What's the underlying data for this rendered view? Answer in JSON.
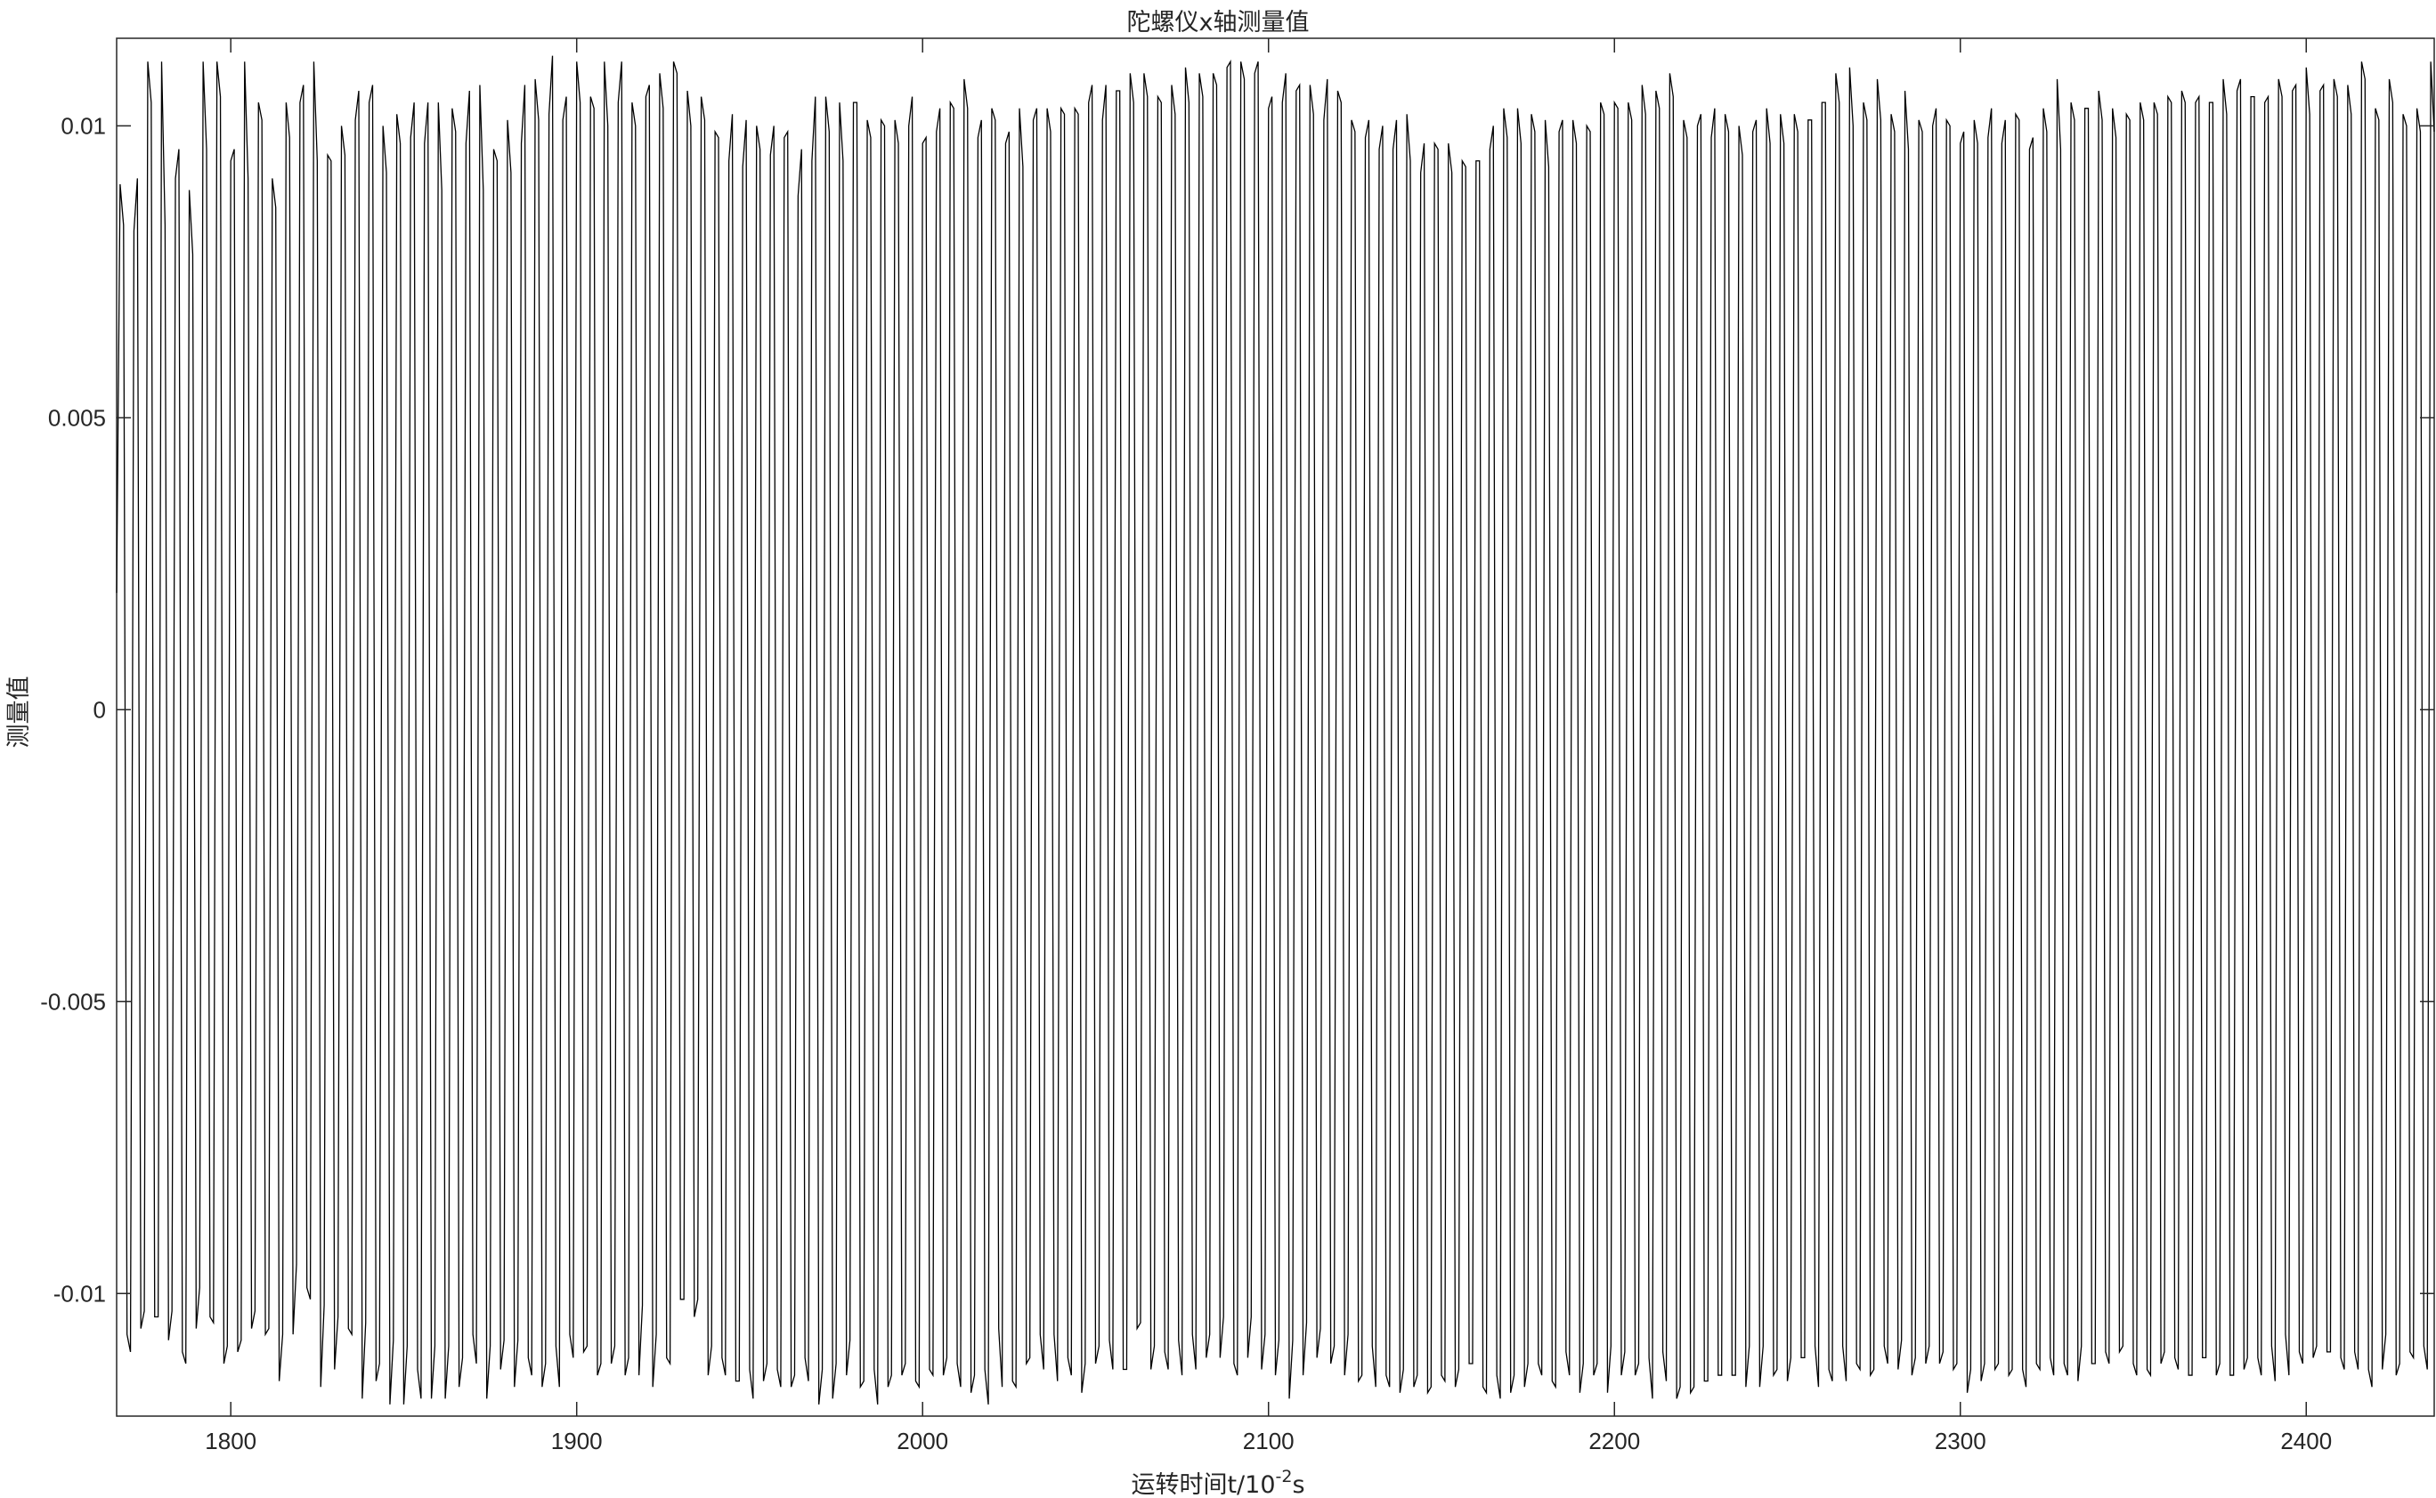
{
  "chart_data": {
    "type": "line",
    "title": "陀螺仪x轴测量值",
    "xlabel": {
      "prefix": "运转时间t/10",
      "superscript": "-2",
      "suffix": "s"
    },
    "ylabel": "测量值",
    "xlim": [
      1767,
      2437
    ],
    "ylim": [
      -0.0121,
      0.0115
    ],
    "grid": false,
    "x_ticks": [
      1800,
      1900,
      2000,
      2100,
      2200,
      2300,
      2400
    ],
    "x_tick_labels": [
      "1800",
      "1900",
      "2000",
      "2100",
      "2200",
      "2300",
      "2400"
    ],
    "y_ticks": [
      -0.01,
      -0.005,
      0,
      0.005,
      0.01
    ],
    "y_tick_labels": [
      "-0.01",
      "-0.005",
      "0",
      "0.005",
      "0.01"
    ],
    "line_color": "#000000",
    "series": [
      {
        "x_start": 1767,
        "x_step": 1,
        "values": [
          0.002,
          0.009,
          0.0083,
          -0.0107,
          -0.011,
          0.0082,
          0.0091,
          -0.0106,
          -0.0103,
          0.0111,
          0.0104,
          -0.0104,
          -0.0104,
          0.0111,
          0.0083,
          -0.0108,
          -0.0103,
          0.0091,
          0.0096,
          -0.011,
          -0.0112,
          0.0089,
          0.0078,
          -0.0106,
          -0.0099,
          0.0111,
          0.0096,
          -0.0104,
          -0.0105,
          0.0111,
          0.0105,
          -0.0112,
          -0.0109,
          0.0094,
          0.0096,
          -0.011,
          -0.0108,
          0.0111,
          0.0091,
          -0.0106,
          -0.0103,
          0.0104,
          0.0101,
          -0.0107,
          -0.0106,
          0.0091,
          0.0086,
          -0.0115,
          -0.0107,
          0.0104,
          0.0098,
          -0.0107,
          -0.0095,
          0.0104,
          0.0107,
          -0.0099,
          -0.0101,
          0.0111,
          0.0094,
          -0.0116,
          -0.0102,
          0.0095,
          0.0094,
          -0.0113,
          -0.0104,
          0.01,
          0.0095,
          -0.0106,
          -0.0107,
          0.0101,
          0.0106,
          -0.0118,
          -0.0105,
          0.0104,
          0.0107,
          -0.0115,
          -0.0112,
          0.01,
          0.0092,
          -0.0119,
          -0.0108,
          0.0102,
          0.0097,
          -0.0119,
          -0.0109,
          0.0098,
          0.0104,
          -0.0113,
          -0.0118,
          0.0097,
          0.0104,
          -0.0118,
          -0.0109,
          0.0104,
          0.0089,
          -0.0118,
          -0.0109,
          0.0103,
          0.0099,
          -0.0116,
          -0.0111,
          0.0097,
          0.0106,
          -0.0107,
          -0.0112,
          0.0107,
          0.0089,
          -0.0118,
          -0.0109,
          0.0096,
          0.0094,
          -0.0113,
          -0.0108,
          0.0101,
          0.0092,
          -0.0116,
          -0.0108,
          0.0097,
          0.0107,
          -0.0111,
          -0.0114,
          0.0108,
          0.0101,
          -0.0116,
          -0.0112,
          0.0102,
          0.0112,
          -0.0109,
          -0.0116,
          0.0101,
          0.0105,
          -0.0107,
          -0.0111,
          0.0111,
          0.0104,
          -0.011,
          -0.0109,
          0.0105,
          0.0103,
          -0.0114,
          -0.0112,
          0.0111,
          0.01,
          -0.0112,
          -0.0109,
          0.0104,
          0.0111,
          -0.0114,
          -0.0111,
          0.0104,
          0.01,
          -0.0114,
          -0.0102,
          0.0105,
          0.0107,
          -0.0116,
          -0.0107,
          0.0109,
          0.0103,
          -0.0111,
          -0.0112,
          0.0111,
          0.0109,
          -0.0101,
          -0.0101,
          0.0106,
          0.01,
          -0.0104,
          -0.0101,
          0.0105,
          0.0101,
          -0.0114,
          -0.0109,
          0.0099,
          0.0098,
          -0.0111,
          -0.0114,
          0.0094,
          0.0102,
          -0.0115,
          -0.0115,
          0.0093,
          0.0101,
          -0.0113,
          -0.0118,
          0.01,
          0.0096,
          -0.0115,
          -0.0112,
          0.0095,
          0.01,
          -0.0113,
          -0.0116,
          0.0098,
          0.0099,
          -0.0116,
          -0.0114,
          0.0088,
          0.0096,
          -0.0111,
          -0.0115,
          0.0094,
          0.0105,
          -0.0119,
          -0.0113,
          0.0105,
          0.0099,
          -0.0118,
          -0.0112,
          0.0104,
          0.0094,
          -0.0114,
          -0.0108,
          0.0104,
          0.0104,
          -0.0116,
          -0.0115,
          0.0101,
          0.0098,
          -0.0113,
          -0.0119,
          0.0101,
          0.01,
          -0.0116,
          -0.0114,
          0.0101,
          0.0097,
          -0.0114,
          -0.0112,
          0.01,
          0.0105,
          -0.0115,
          -0.0116,
          0.0097,
          0.0098,
          -0.0113,
          -0.0114,
          0.0099,
          0.0103,
          -0.0114,
          -0.0111,
          0.0104,
          0.0103,
          -0.0112,
          -0.0116,
          0.0108,
          0.0103,
          -0.0117,
          -0.0114,
          0.0098,
          0.0101,
          -0.0113,
          -0.0119,
          0.0103,
          0.0101,
          -0.0106,
          -0.0116,
          0.0097,
          0.0099,
          -0.0115,
          -0.0116,
          0.0103,
          0.0093,
          -0.0112,
          -0.0111,
          0.0101,
          0.0103,
          -0.0107,
          -0.0113,
          0.0103,
          0.0099,
          -0.0107,
          -0.0115,
          0.0103,
          0.0102,
          -0.0111,
          -0.0114,
          0.0103,
          0.0102,
          -0.0117,
          -0.0112,
          0.0104,
          0.0107,
          -0.0112,
          -0.0109,
          0.0101,
          0.0107,
          -0.0108,
          -0.0113,
          0.0106,
          0.0106,
          -0.0113,
          -0.0113,
          0.0109,
          0.0104,
          -0.0106,
          -0.0105,
          0.0109,
          0.0105,
          -0.0113,
          -0.0109,
          0.0105,
          0.0104,
          -0.011,
          -0.0113,
          0.0107,
          0.0102,
          -0.0108,
          -0.0114,
          0.011,
          0.0104,
          -0.0107,
          -0.0113,
          0.0109,
          0.0105,
          -0.0111,
          -0.0107,
          0.0109,
          0.0107,
          -0.0111,
          -0.0104,
          0.011,
          0.0111,
          -0.0112,
          -0.0114,
          0.0111,
          0.0108,
          -0.0111,
          -0.0104,
          0.0109,
          0.0111,
          -0.0113,
          -0.0107,
          0.0103,
          0.0105,
          -0.0114,
          -0.0108,
          0.0104,
          0.0109,
          -0.0118,
          -0.0108,
          0.0106,
          0.0107,
          -0.0114,
          -0.0105,
          0.0107,
          0.0102,
          -0.0111,
          -0.0106,
          0.0101,
          0.0108,
          -0.0112,
          -0.0109,
          0.0106,
          0.0104,
          -0.0114,
          -0.0107,
          0.0101,
          0.0099,
          -0.0115,
          -0.0114,
          0.0098,
          0.0101,
          -0.0109,
          -0.0116,
          0.0096,
          0.01,
          -0.0114,
          -0.0116,
          0.0096,
          0.0101,
          -0.0117,
          -0.0113,
          0.0102,
          0.0094,
          -0.0116,
          -0.0114,
          0.0092,
          0.0097,
          -0.0117,
          -0.0116,
          0.0097,
          0.0096,
          -0.0114,
          -0.0115,
          0.0097,
          0.0092,
          -0.0116,
          -0.0113,
          0.0094,
          0.0093,
          -0.0112,
          -0.0112,
          0.0094,
          0.0094,
          -0.0116,
          -0.0117,
          0.0096,
          0.01,
          -0.0114,
          -0.0118,
          0.0103,
          0.0098,
          -0.0117,
          -0.0114,
          0.0103,
          0.0097,
          -0.0116,
          -0.0112,
          0.0102,
          0.0099,
          -0.0112,
          -0.0114,
          0.0101,
          0.0093,
          -0.0115,
          -0.0116,
          0.0099,
          0.0101,
          -0.011,
          -0.0114,
          0.0101,
          0.0097,
          -0.0117,
          -0.0112,
          0.01,
          0.0099,
          -0.0114,
          -0.0112,
          0.0104,
          0.0102,
          -0.0117,
          -0.0109,
          0.0104,
          0.0103,
          -0.0114,
          -0.011,
          0.0104,
          0.0101,
          -0.0114,
          -0.0112,
          0.0107,
          0.0102,
          -0.0111,
          -0.0118,
          0.0106,
          0.0103,
          -0.011,
          -0.0115,
          0.0109,
          0.0105,
          -0.0118,
          -0.0116,
          0.0101,
          0.0098,
          -0.0117,
          -0.0116,
          0.01,
          0.0102,
          -0.0115,
          -0.0115,
          0.0098,
          0.0103,
          -0.0114,
          -0.0114,
          0.0102,
          0.0099,
          -0.0114,
          -0.0114,
          0.01,
          0.0095,
          -0.0116,
          -0.0109,
          0.0099,
          0.0101,
          -0.0116,
          -0.0109,
          0.0103,
          0.0097,
          -0.0114,
          -0.0113,
          0.0102,
          0.0097,
          -0.0115,
          -0.0111,
          0.0102,
          0.0099,
          -0.0111,
          -0.0111,
          0.0101,
          0.0101,
          -0.0109,
          -0.0116,
          0.0104,
          0.0104,
          -0.0113,
          -0.0115,
          0.0109,
          0.0104,
          -0.0109,
          -0.0115,
          0.011,
          0.01,
          -0.0112,
          -0.0113,
          0.0104,
          0.0101,
          -0.0114,
          -0.0113,
          0.0108,
          0.0101,
          -0.0109,
          -0.0112,
          0.0102,
          0.0099,
          -0.0113,
          -0.0108,
          0.0106,
          0.0096,
          -0.0114,
          -0.0111,
          0.0101,
          0.0099,
          -0.0112,
          -0.0109,
          0.01,
          0.0103,
          -0.0112,
          -0.011,
          0.0101,
          0.01,
          -0.0113,
          -0.0112,
          0.0097,
          0.0099,
          -0.0117,
          -0.0113,
          0.0101,
          0.0097,
          -0.0115,
          -0.0112,
          0.0098,
          0.0103,
          -0.0113,
          -0.0112,
          0.0097,
          0.0101,
          -0.0114,
          -0.0113,
          0.0102,
          0.0101,
          -0.0113,
          -0.0116,
          0.0096,
          0.0098,
          -0.0112,
          -0.0113,
          0.0103,
          0.0099,
          -0.0111,
          -0.0114,
          0.0108,
          0.0096,
          -0.0112,
          -0.0114,
          0.0104,
          0.0101,
          -0.0115,
          -0.0109,
          0.0103,
          0.0103,
          -0.0112,
          -0.0112,
          0.0106,
          0.0101,
          -0.011,
          -0.0112,
          0.0103,
          0.0098,
          -0.011,
          -0.0109,
          0.0102,
          0.0101,
          -0.0112,
          -0.0114,
          0.0104,
          0.0101,
          -0.0113,
          -0.0114,
          0.0104,
          0.0102,
          -0.0112,
          -0.011,
          0.0105,
          0.0104,
          -0.0111,
          -0.0113,
          0.0106,
          0.0104,
          -0.0114,
          -0.0114,
          0.0104,
          0.0105,
          -0.0111,
          -0.0111,
          0.0104,
          0.0104,
          -0.0114,
          -0.0112,
          0.0108,
          0.0102,
          -0.0114,
          -0.0114,
          0.0106,
          0.0108,
          -0.0113,
          -0.0111,
          0.0105,
          0.0105,
          -0.0111,
          -0.0114,
          0.0104,
          0.0105,
          -0.0109,
          -0.0115,
          0.0108,
          0.0105,
          -0.0107,
          -0.0114,
          0.0106,
          0.0107,
          -0.011,
          -0.0112,
          0.011,
          0.0102,
          -0.0111,
          -0.0109,
          0.0106,
          0.0107,
          -0.011,
          -0.011,
          0.0108,
          0.0105,
          -0.0111,
          -0.0113,
          0.0107,
          0.0102,
          -0.011,
          -0.0113,
          0.0111,
          0.0108,
          -0.0113,
          -0.0116,
          0.0103,
          0.0101,
          -0.0113,
          -0.0107,
          0.0108,
          0.0104,
          -0.0114,
          -0.0112,
          0.0102,
          0.01,
          -0.011,
          -0.0111,
          0.0103,
          0.0099,
          -0.0109,
          -0.0113,
          0.0111,
          0.0099,
          -0.0113,
          -0.0113,
          0.0103,
          0.0102,
          -0.0106,
          -0.0111,
          0.0106,
          0.0102,
          -0.0113,
          -0.0108,
          0.0098,
          0.0097,
          -0.0113,
          -0.0113,
          0.0106,
          0.0105,
          -0.0108,
          -0.0112,
          0.0107,
          0.0104,
          -0.0114,
          -0.0109,
          0.0105,
          0.0099,
          -0.0113,
          -0.0106,
          0.0105,
          0.0104,
          -0.0108,
          -0.0109,
          0.0111,
          0.0102,
          -0.0113,
          -0.0109,
          0.0103,
          0.0101,
          -0.0109,
          -0.011,
          0.0107,
          0.0109,
          -0.0105,
          -0.0108,
          0.0101,
          0.0092,
          -0.0106,
          -0.0112,
          0.0093,
          0.0092,
          -0.0111,
          -0.0104,
          0.0101,
          0.0099,
          -0.0107,
          -0.0106,
          0.0103,
          0.0093,
          -0.0103,
          -0.0104,
          0.0102,
          0.0095,
          -0.0107,
          -0.0108,
          0.0108,
          0.0098,
          -0.0108,
          -0.0103,
          0.0104,
          0.0094,
          -0.0109,
          -0.0113,
          0.0111,
          0.0094,
          -0.0107,
          -0.0106,
          0.0106,
          0.0097,
          -0.011,
          -0.0106,
          0.0111,
          0.0104,
          -0.0106,
          -0.0108,
          0.0107,
          0.0094,
          -0.0111,
          -0.0112,
          0.0107,
          0.0093,
          -0.0107,
          -0.0102,
          0.0104,
          0.0099,
          -0.0104,
          -0.0106,
          0.0104,
          0.0098,
          -0.0108,
          -0.0107,
          0.011,
          0.0093,
          -0.011,
          -0.0109,
          0.0111,
          0.0097,
          -0.0112,
          -0.0103,
          0.0105,
          0.0093,
          -0.0107,
          -0.0104,
          0.0109,
          0.0093,
          -0.0107,
          -0.0101,
          0.0111,
          0.0092,
          -0.0112,
          -0.0106,
          0.0109,
          0.0098,
          -0.0114,
          -0.0112,
          0.0093,
          0.0093,
          -0.0109,
          -0.0105,
          0.0108,
          0.0089,
          -0.0113,
          -0.0109,
          0.0111,
          0.0088
        ]
      }
    ]
  }
}
